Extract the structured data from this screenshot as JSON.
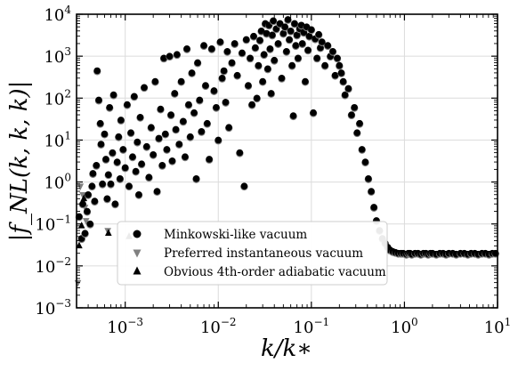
{
  "chart_data": {
    "type": "scatter",
    "title": "",
    "xlabel": "k/k∗",
    "ylabel": "|f_NL(k, k, k)|",
    "x_scale": "log",
    "y_scale": "log",
    "xlim": [
      0.0003,
      10
    ],
    "ylim": [
      0.001,
      10000
    ],
    "grid": true,
    "legend_position": "lower-left-center",
    "x_ticks": [
      {
        "value": 0.001,
        "base": "10",
        "exp": "−3"
      },
      {
        "value": 0.01,
        "base": "10",
        "exp": "−2"
      },
      {
        "value": 0.1,
        "base": "10",
        "exp": "−1"
      },
      {
        "value": 1,
        "base": "10",
        "exp": "0"
      },
      {
        "value": 10,
        "base": "10",
        "exp": "1"
      }
    ],
    "y_ticks": [
      {
        "value": 0.001,
        "base": "10",
        "exp": "−3"
      },
      {
        "value": 0.01,
        "base": "10",
        "exp": "−2"
      },
      {
        "value": 0.1,
        "base": "10",
        "exp": "−1"
      },
      {
        "value": 1,
        "base": "10",
        "exp": "0"
      },
      {
        "value": 10,
        "base": "10",
        "exp": "1"
      },
      {
        "value": 100,
        "base": "10",
        "exp": "2"
      },
      {
        "value": 1000,
        "base": "10",
        "exp": "3"
      },
      {
        "value": 10000,
        "base": "10",
        "exp": "4"
      }
    ],
    "legend": [
      {
        "label": "Minkowski-like vacuum",
        "marker": "circle",
        "color": "#000000"
      },
      {
        "label": "Preferred instantaneous vacuum",
        "marker": "triangle-down",
        "color": "#808080"
      },
      {
        "label": "Obvious 4th-order adiabatic vacuum",
        "marker": "triangle-up",
        "color": "#000000"
      }
    ],
    "series": [
      {
        "name": "Minkowski-like vacuum",
        "marker": "circle",
        "color": "#000000",
        "points": [
          [
            0.00032,
            0.15
          ],
          [
            0.00034,
            0.045
          ],
          [
            0.00035,
            0.3
          ],
          [
            0.00037,
            0.06
          ],
          [
            0.00039,
            0.2
          ],
          [
            0.0004,
            0.5
          ],
          [
            0.00042,
            0.1
          ],
          [
            0.00044,
            0.8
          ],
          [
            0.00045,
            1.6
          ],
          [
            0.00047,
            0.35
          ],
          [
            0.00049,
            2.5
          ],
          [
            0.0005,
            450
          ],
          [
            0.00052,
            90
          ],
          [
            0.00054,
            25
          ],
          [
            0.00055,
            8
          ],
          [
            0.00057,
            0.9
          ],
          [
            0.0006,
            14
          ],
          [
            0.00062,
            3.5
          ],
          [
            0.00064,
            0.4
          ],
          [
            0.00066,
            1.5
          ],
          [
            0.00068,
            60
          ],
          [
            0.0007,
            0.9
          ],
          [
            0.00073,
            5
          ],
          [
            0.00075,
            120
          ],
          [
            0.00078,
            0.3
          ],
          [
            0.00082,
            3
          ],
          [
            0.00085,
            12
          ],
          [
            0.00088,
            1.2
          ],
          [
            0.0009,
            30
          ],
          [
            0.00095,
            6
          ],
          [
            0.001,
            2.2
          ],
          [
            0.00105,
            70
          ],
          [
            0.0011,
            0.8
          ],
          [
            0.00115,
            15
          ],
          [
            0.0012,
            4
          ],
          [
            0.00125,
            110
          ],
          [
            0.0013,
            1.8
          ],
          [
            0.00135,
            9
          ],
          [
            0.0014,
            0.5
          ],
          [
            0.00145,
            35
          ],
          [
            0.0015,
            2.7
          ],
          [
            0.0016,
            180
          ],
          [
            0.0017,
            7
          ],
          [
            0.0018,
            1.3
          ],
          [
            0.0019,
            20
          ],
          [
            0.002,
            4.5
          ],
          [
            0.0021,
            250
          ],
          [
            0.0022,
            0.6
          ],
          [
            0.0023,
            11
          ],
          [
            0.0024,
            55
          ],
          [
            0.0025,
            2.5
          ],
          [
            0.0026,
            900
          ],
          [
            0.0027,
            14
          ],
          [
            0.0028,
            6
          ],
          [
            0.003,
            1000
          ],
          [
            0.0031,
            40
          ],
          [
            0.0032,
            3.2
          ],
          [
            0.0034,
            130
          ],
          [
            0.0035,
            18
          ],
          [
            0.0036,
            1100
          ],
          [
            0.0038,
            8
          ],
          [
            0.004,
            250
          ],
          [
            0.0042,
            28
          ],
          [
            0.0044,
            4
          ],
          [
            0.0046,
            1500
          ],
          [
            0.0048,
            70
          ],
          [
            0.005,
            12
          ],
          [
            0.0052,
            400
          ],
          [
            0.0055,
            45
          ],
          [
            0.0058,
            1.2
          ],
          [
            0.006,
            700
          ],
          [
            0.0063,
            90
          ],
          [
            0.0066,
            16
          ],
          [
            0.007,
            1800
          ],
          [
            0.0073,
            200
          ],
          [
            0.0076,
            25
          ],
          [
            0.008,
            3.5
          ],
          [
            0.0085,
            1500
          ],
          [
            0.009,
            150
          ],
          [
            0.0095,
            60
          ],
          [
            0.01,
            10
          ],
          [
            0.0105,
            2200
          ],
          [
            0.011,
            300
          ],
          [
            0.0115,
            450
          ],
          [
            0.012,
            80
          ],
          [
            0.0125,
            1300
          ],
          [
            0.013,
            20
          ],
          [
            0.014,
            700
          ],
          [
            0.015,
            2000
          ],
          [
            0.016,
            350
          ],
          [
            0.017,
            5
          ],
          [
            0.018,
            1200
          ],
          [
            0.019,
            0.8
          ],
          [
            0.02,
            2500
          ],
          [
            0.021,
            200
          ],
          [
            0.022,
            900
          ],
          [
            0.023,
            70
          ],
          [
            0.024,
            3000
          ],
          [
            0.025,
            1600
          ],
          [
            0.026,
            100
          ],
          [
            0.027,
            600
          ],
          [
            0.028,
            2400
          ],
          [
            0.029,
            4000
          ],
          [
            0.03,
            250
          ],
          [
            0.031,
            1100
          ],
          [
            0.032,
            6000
          ],
          [
            0.033,
            3500
          ],
          [
            0.034,
            500
          ],
          [
            0.035,
            5500
          ],
          [
            0.036,
            1500
          ],
          [
            0.037,
            130
          ],
          [
            0.038,
            3200
          ],
          [
            0.039,
            7000
          ],
          [
            0.04,
            800
          ],
          [
            0.042,
            4500
          ],
          [
            0.044,
            2000
          ],
          [
            0.046,
            6000
          ],
          [
            0.048,
            300
          ],
          [
            0.05,
            3500
          ],
          [
            0.052,
            5000
          ],
          [
            0.054,
            1300
          ],
          [
            0.056,
            7500
          ],
          [
            0.058,
            2500
          ],
          [
            0.06,
            4000
          ],
          [
            0.062,
            600
          ],
          [
            0.064,
            38
          ],
          [
            0.066,
            6000
          ],
          [
            0.068,
            1800
          ],
          [
            0.07,
            3200
          ],
          [
            0.072,
            900
          ],
          [
            0.075,
            4500
          ],
          [
            0.078,
            5500
          ],
          [
            0.08,
            2000
          ],
          [
            0.083,
            3700
          ],
          [
            0.086,
            250
          ],
          [
            0.089,
            5000
          ],
          [
            0.092,
            1400
          ],
          [
            0.095,
            3000
          ],
          [
            0.1,
            4300
          ],
          [
            0.105,
            45
          ],
          [
            0.11,
            2600
          ],
          [
            0.115,
            900
          ],
          [
            0.12,
            3300
          ],
          [
            0.125,
            1600
          ],
          [
            0.13,
            2200
          ],
          [
            0.14,
            600
          ],
          [
            0.15,
            1800
          ],
          [
            0.16,
            1000
          ],
          [
            0.17,
            1300
          ],
          [
            0.18,
            350
          ],
          [
            0.19,
            900
          ],
          [
            0.2,
            600
          ],
          [
            0.21,
            400
          ],
          [
            0.22,
            250
          ],
          [
            0.23,
            120
          ],
          [
            0.25,
            170
          ],
          [
            0.27,
            40
          ],
          [
            0.29,
            60
          ],
          [
            0.31,
            15
          ],
          [
            0.33,
            25
          ],
          [
            0.35,
            6
          ],
          [
            0.38,
            3
          ],
          [
            0.41,
            1.2
          ],
          [
            0.44,
            0.6
          ],
          [
            0.47,
            0.25
          ],
          [
            0.5,
            0.12
          ],
          [
            0.54,
            0.07
          ],
          [
            0.58,
            0.045
          ],
          [
            0.62,
            0.035
          ],
          [
            0.66,
            0.028
          ],
          [
            0.7,
            0.024
          ],
          [
            0.75,
            0.022
          ],
          [
            0.8,
            0.021
          ],
          [
            0.86,
            0.02
          ],
          [
            0.92,
            0.02
          ],
          [
            0.97,
            0.02
          ],
          [
            1.05,
            0.019
          ],
          [
            1.1,
            0.02
          ],
          [
            1.15,
            0.02
          ],
          [
            1.2,
            0.019
          ],
          [
            1.3,
            0.02
          ],
          [
            1.4,
            0.02
          ],
          [
            1.5,
            0.019
          ],
          [
            1.6,
            0.02
          ],
          [
            1.7,
            0.02
          ],
          [
            1.8,
            0.019
          ],
          [
            1.9,
            0.02
          ],
          [
            2.0,
            0.02
          ],
          [
            2.2,
            0.019
          ],
          [
            2.4,
            0.02
          ],
          [
            2.6,
            0.02
          ],
          [
            2.8,
            0.019
          ],
          [
            3.0,
            0.02
          ],
          [
            3.3,
            0.02
          ],
          [
            3.6,
            0.019
          ],
          [
            4.0,
            0.02
          ],
          [
            4.4,
            0.02
          ],
          [
            4.8,
            0.019
          ],
          [
            5.2,
            0.02
          ],
          [
            5.7,
            0.02
          ],
          [
            6.2,
            0.019
          ],
          [
            6.8,
            0.02
          ],
          [
            7.4,
            0.02
          ],
          [
            8.1,
            0.019
          ],
          [
            8.8,
            0.02
          ],
          [
            9.5,
            0.02
          ]
        ]
      },
      {
        "name": "Preferred instantaneous vacuum",
        "marker": "triangle-down",
        "color": "#808080",
        "points": [
          [
            0.00031,
            0.004
          ],
          [
            0.00033,
            0.8
          ],
          [
            0.00035,
            0.5
          ],
          [
            0.00037,
            0.25
          ],
          [
            0.00038,
            0.12
          ],
          [
            0.00065,
            0.07
          ]
        ]
      },
      {
        "name": "Obvious 4th-order adiabatic vacuum",
        "marker": "triangle-up",
        "color": "#000000",
        "points": [
          [
            0.00032,
            0.03
          ],
          [
            0.00034,
            0.09
          ],
          [
            0.00036,
            0.4
          ],
          [
            0.00066,
            0.06
          ],
          [
            0.0011,
            0.05
          ]
        ]
      }
    ]
  }
}
